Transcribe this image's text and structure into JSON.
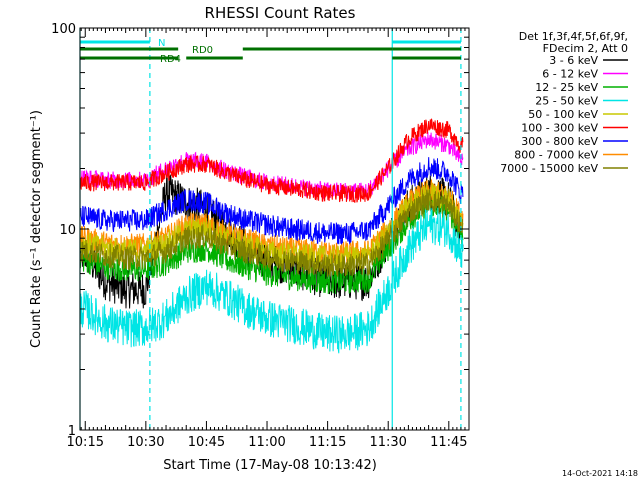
{
  "chart_data": {
    "type": "line",
    "title": "RHESSI Count Rates",
    "xlabel": "Start Time (17-May-08 10:13:42)",
    "ylabel": "Count Rate (s⁻¹ detector segment⁻¹)",
    "yscale": "log",
    "ylim": [
      1,
      100
    ],
    "xlim": [
      "10:13:42",
      "11:50:00"
    ],
    "x_ticks": [
      "10:15",
      "10:30",
      "10:45",
      "11:00",
      "11:15",
      "11:30",
      "11:45"
    ],
    "y_ticks": [
      "1",
      "10",
      "100"
    ],
    "timestamp": "14-Oct-2021 14:18",
    "legend": {
      "position": "right",
      "header": [
        "Det 1f,3f,4f,5f,6f,9f,",
        "FDecim 2, Att 0"
      ]
    },
    "flags": [
      {
        "label": "N",
        "color": "#00e5e5",
        "segments": [
          [
            "10:13:42",
            "10:31"
          ],
          [
            "11:31",
            "11:48"
          ]
        ]
      },
      {
        "label": "RD0",
        "color": "#007000",
        "segments": [
          [
            "10:13:42",
            "10:38"
          ],
          [
            "10:54",
            "11:31"
          ],
          [
            "11:31",
            "11:48"
          ]
        ]
      },
      {
        "label": "RD4",
        "color": "#007000",
        "segments": [
          [
            "10:13:42",
            "10:38"
          ],
          [
            "10:40",
            "10:54"
          ],
          [
            "11:31",
            "11:48"
          ]
        ]
      }
    ],
    "markers": {
      "solid": [
        "10:13:42",
        "11:31"
      ],
      "dashed": [
        "10:31",
        "11:48"
      ]
    },
    "x": [
      "10:15",
      "10:20",
      "10:25",
      "10:30",
      "10:35",
      "10:40",
      "10:45",
      "10:50",
      "10:55",
      "11:00",
      "11:05",
      "11:10",
      "11:15",
      "11:20",
      "11:25",
      "11:30",
      "11:35",
      "11:40",
      "11:45",
      "11:48"
    ],
    "series": [
      {
        "name": "3 - 6 keV",
        "color": "#000000",
        "values": [
          7.5,
          5.5,
          5.0,
          5.0,
          15.5,
          13.5,
          12.5,
          10.0,
          8.0,
          7.0,
          6.5,
          6.0,
          5.5,
          5.5,
          5.5,
          9.0,
          13.0,
          15.5,
          14.0,
          9.5
        ]
      },
      {
        "name": "6 - 12 keV",
        "color": "#ff00ff",
        "values": [
          18.0,
          17.5,
          17.5,
          17.5,
          20.0,
          22.0,
          21.5,
          19.5,
          18.0,
          17.0,
          16.5,
          16.0,
          15.5,
          15.5,
          15.5,
          20.0,
          25.0,
          28.0,
          26.0,
          22.0
        ]
      },
      {
        "name": "12 - 25 keV",
        "color": "#00b000",
        "values": [
          7.0,
          6.5,
          6.3,
          6.3,
          6.8,
          7.8,
          8.0,
          7.0,
          6.5,
          6.0,
          5.8,
          5.6,
          5.5,
          5.5,
          5.6,
          8.0,
          11.0,
          13.5,
          12.5,
          9.5
        ]
      },
      {
        "name": "25 - 50 keV",
        "color": "#00e5e5",
        "values": [
          4.0,
          3.4,
          3.2,
          3.2,
          3.6,
          4.6,
          5.2,
          4.6,
          4.0,
          3.6,
          3.4,
          3.2,
          3.0,
          3.0,
          3.2,
          5.0,
          8.0,
          10.5,
          10.0,
          7.5
        ]
      },
      {
        "name": "50 - 100 keV",
        "color": "#c8c800",
        "values": [
          8.5,
          8.0,
          7.8,
          7.8,
          8.5,
          9.8,
          10.0,
          9.0,
          8.3,
          7.7,
          7.5,
          7.3,
          7.2,
          7.2,
          7.3,
          9.5,
          13.0,
          15.0,
          14.0,
          11.0
        ]
      },
      {
        "name": "100 - 300 keV",
        "color": "#ff0000",
        "values": [
          17.0,
          17.0,
          17.0,
          17.0,
          19.0,
          21.0,
          21.0,
          19.0,
          17.5,
          16.5,
          16.0,
          15.5,
          15.0,
          15.0,
          15.0,
          20.0,
          28.0,
          33.0,
          31.0,
          26.0
        ]
      },
      {
        "name": "300 - 800 keV",
        "color": "#0000ff",
        "values": [
          11.5,
          11.0,
          11.0,
          11.0,
          12.5,
          14.0,
          13.5,
          12.0,
          11.0,
          10.5,
          10.0,
          9.8,
          9.5,
          9.5,
          9.8,
          13.0,
          17.5,
          20.5,
          19.0,
          15.0
        ]
      },
      {
        "name": "800 - 7000 keV",
        "color": "#ff8c00",
        "values": [
          9.0,
          8.5,
          8.3,
          8.3,
          9.0,
          10.5,
          10.5,
          9.5,
          8.8,
          8.2,
          8.0,
          7.8,
          7.6,
          7.6,
          7.7,
          10.0,
          13.5,
          15.5,
          14.5,
          11.5
        ]
      },
      {
        "name": "7000 - 15000 keV",
        "color": "#808000",
        "values": [
          7.8,
          7.4,
          7.2,
          7.2,
          7.8,
          9.0,
          9.2,
          8.3,
          7.7,
          7.2,
          7.0,
          6.8,
          6.6,
          6.6,
          6.7,
          8.8,
          12.0,
          14.0,
          13.0,
          10.5
        ]
      }
    ]
  }
}
